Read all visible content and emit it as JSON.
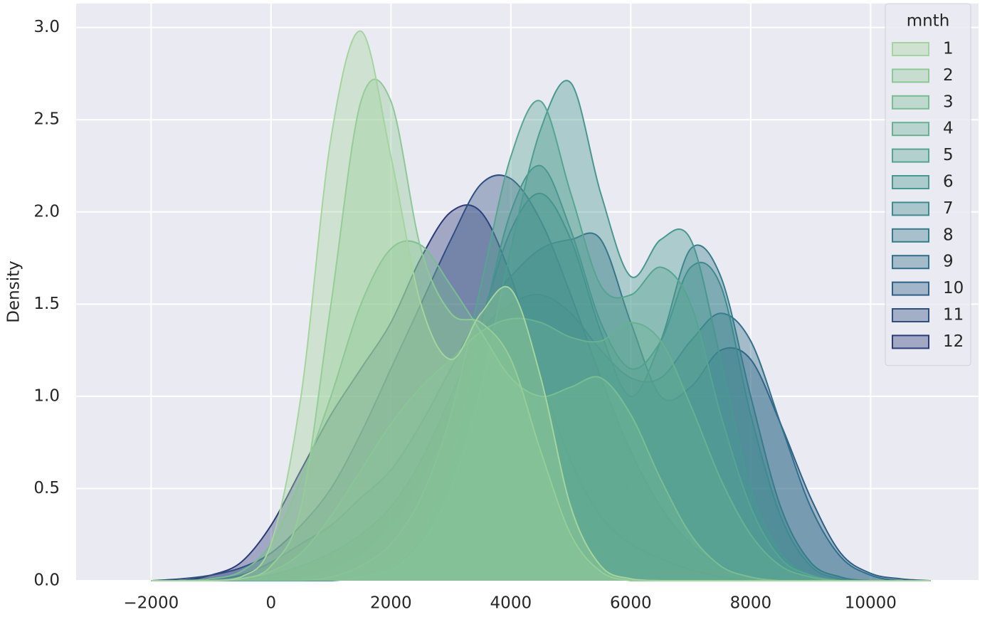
{
  "chart_data": {
    "type": "kde",
    "y_label": "Density",
    "legend_title": "mnth",
    "legend": "upper right",
    "grid": true,
    "alpha": 0.38,
    "xlim": [
      -3250,
      11800
    ],
    "ylim": [
      0,
      3.13
    ],
    "xticks": [
      {
        "value": -2000,
        "label": "−2000"
      },
      0,
      2000,
      4000,
      6000,
      8000,
      10000
    ],
    "yticks": [
      {
        "value": 0,
        "label": "0.0"
      },
      0.5,
      {
        "value": 1,
        "label": "1.0"
      },
      1.5,
      {
        "value": 2,
        "label": "2.0"
      },
      2.5,
      {
        "value": 3,
        "label": "3.0"
      }
    ],
    "x": [
      -2000,
      -1500,
      -1000,
      -500,
      0,
      500,
      1000,
      1500,
      2000,
      2500,
      3000,
      3500,
      4000,
      4500,
      5000,
      5500,
      6000,
      6500,
      7000,
      7500,
      8000,
      8500,
      9000,
      9500,
      10000,
      10500,
      11000
    ],
    "series": [
      {
        "name": "1",
        "color": "#a3d59c",
        "values": [
          0,
          0,
          0,
          0.02,
          0.2,
          1.0,
          2.4,
          2.98,
          2.3,
          1.5,
          1.2,
          1.45,
          1.58,
          1.1,
          0.4,
          0.08,
          0.01,
          0,
          0,
          0,
          0,
          0,
          0,
          0,
          0,
          0,
          0
        ]
      },
      {
        "name": "2",
        "color": "#8dc995",
        "values": [
          0,
          0,
          0,
          0.01,
          0.08,
          0.4,
          1.5,
          2.6,
          2.6,
          1.8,
          1.45,
          1.4,
          1.2,
          0.7,
          0.25,
          0.05,
          0,
          0,
          0,
          0,
          0,
          0,
          0,
          0,
          0,
          0,
          0
        ]
      },
      {
        "name": "3",
        "color": "#79bd93",
        "values": [
          0,
          0,
          0.01,
          0.05,
          0.2,
          0.55,
          1.0,
          1.5,
          1.8,
          1.82,
          1.6,
          1.35,
          1.1,
          1.0,
          1.05,
          1.1,
          0.9,
          0.55,
          0.25,
          0.08,
          0.02,
          0,
          0,
          0,
          0,
          0,
          0
        ]
      },
      {
        "name": "4",
        "color": "#67b192",
        "values": [
          0,
          0,
          0,
          0.01,
          0.05,
          0.15,
          0.35,
          0.6,
          0.85,
          1.05,
          1.2,
          1.35,
          1.42,
          1.4,
          1.32,
          1.3,
          1.4,
          1.3,
          0.95,
          0.55,
          0.25,
          0.08,
          0.02,
          0,
          0,
          0,
          0
        ]
      },
      {
        "name": "5",
        "color": "#56a591",
        "values": [
          0,
          0,
          0,
          0,
          0,
          0,
          0.02,
          0.08,
          0.2,
          0.45,
          0.9,
          1.6,
          2.3,
          2.6,
          2.1,
          1.6,
          1.55,
          1.7,
          1.5,
          0.9,
          0.4,
          0.12,
          0.03,
          0,
          0,
          0,
          0
        ]
      },
      {
        "name": "6",
        "color": "#489890",
        "values": [
          0,
          0,
          0,
          0,
          0,
          0,
          0,
          0.02,
          0.06,
          0.2,
          0.5,
          1.05,
          1.8,
          2.45,
          2.7,
          2.1,
          1.65,
          1.85,
          1.85,
          1.2,
          0.5,
          0.15,
          0.03,
          0,
          0,
          0,
          0
        ]
      },
      {
        "name": "7",
        "color": "#3e8b8e",
        "values": [
          0,
          0,
          0,
          0,
          0,
          0,
          0,
          0.02,
          0.08,
          0.25,
          0.65,
          1.35,
          2.0,
          2.25,
          1.9,
          1.4,
          1.15,
          1.3,
          1.7,
          1.6,
          0.9,
          0.35,
          0.08,
          0.01,
          0,
          0,
          0
        ]
      },
      {
        "name": "8",
        "color": "#367d8c",
        "values": [
          0,
          0,
          0,
          0,
          0,
          0.02,
          0.06,
          0.15,
          0.3,
          0.55,
          0.9,
          1.4,
          1.9,
          2.1,
          1.85,
          1.35,
          1.0,
          1.3,
          1.8,
          1.65,
          1.0,
          0.4,
          0.1,
          0.02,
          0,
          0,
          0
        ]
      },
      {
        "name": "9",
        "color": "#316f8a",
        "values": [
          0,
          0,
          0,
          0.01,
          0.03,
          0.08,
          0.15,
          0.25,
          0.4,
          0.65,
          1.0,
          1.35,
          1.5,
          1.55,
          1.45,
          1.25,
          1.1,
          1.1,
          1.3,
          1.45,
          1.3,
          0.85,
          0.4,
          0.13,
          0.03,
          0,
          0
        ]
      },
      {
        "name": "10",
        "color": "#2e6087",
        "values": [
          0,
          0,
          0.01,
          0.03,
          0.1,
          0.2,
          0.3,
          0.45,
          0.6,
          0.85,
          1.15,
          1.45,
          1.65,
          1.8,
          1.85,
          1.85,
          1.4,
          1.0,
          1.05,
          1.25,
          1.2,
          0.85,
          0.45,
          0.15,
          0.04,
          0.01,
          0
        ]
      },
      {
        "name": "11",
        "color": "#2d4f82",
        "values": [
          0,
          0.01,
          0.03,
          0.07,
          0.15,
          0.3,
          0.5,
          0.8,
          1.15,
          1.5,
          1.85,
          2.15,
          2.18,
          1.95,
          1.55,
          1.1,
          0.7,
          0.4,
          0.2,
          0.08,
          0.02,
          0,
          0,
          0,
          0,
          0,
          0
        ]
      },
      {
        "name": "12",
        "color": "#2c3b79",
        "values": [
          0,
          0,
          0.03,
          0.1,
          0.3,
          0.6,
          0.9,
          1.15,
          1.4,
          1.75,
          2.0,
          2.0,
          1.65,
          1.1,
          0.65,
          0.35,
          0.2,
          0.12,
          0.06,
          0.02,
          0,
          0,
          0,
          0,
          0,
          0,
          0
        ]
      }
    ]
  }
}
